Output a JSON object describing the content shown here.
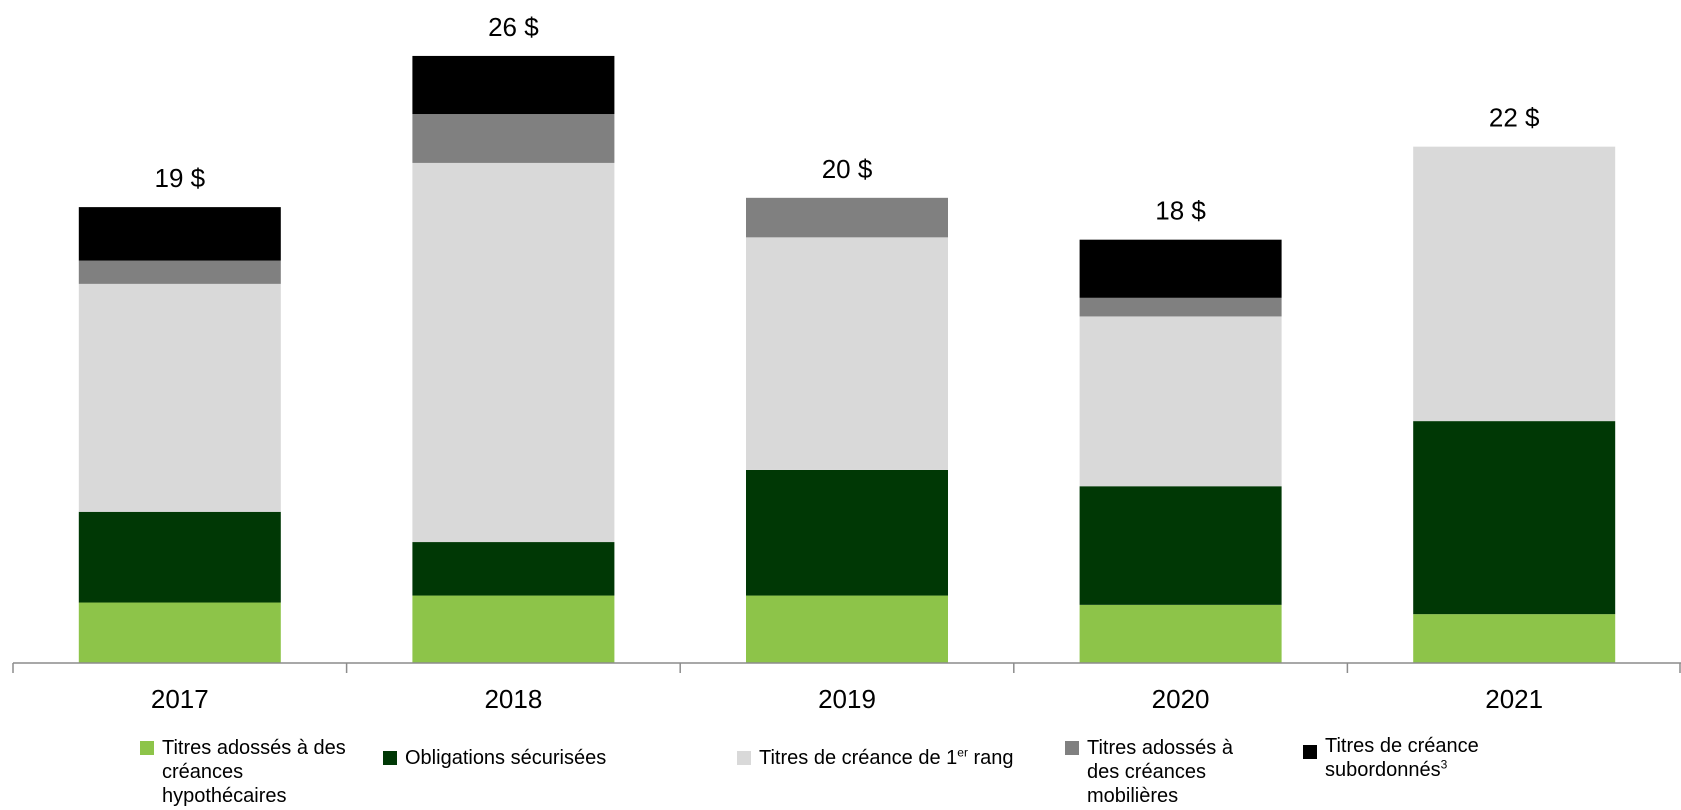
{
  "chart_data": {
    "type": "bar",
    "stacked": true,
    "categories": [
      "2017",
      "2018",
      "2019",
      "2020",
      "2021"
    ],
    "totals_labels": [
      "19 $",
      "26 $",
      "20 $",
      "18 $",
      "22 $"
    ],
    "ylim": [
      0,
      27
    ],
    "grid": false,
    "legend_position": "bottom",
    "series": [
      {
        "name": "Titres adossés à des créances hypothécaires",
        "color": "#8dc449",
        "values": [
          2.6,
          2.9,
          2.9,
          2.5,
          2.1
        ]
      },
      {
        "name": "Obligations sécurisées",
        "color": "#003805",
        "values": [
          3.9,
          2.3,
          5.4,
          5.1,
          8.3
        ]
      },
      {
        "name": "Titres de créance de 1er rang",
        "color": "#d9d9d9",
        "values": [
          9.8,
          16.3,
          10.0,
          7.3,
          11.8
        ]
      },
      {
        "name": "Titres adossés à des créances mobilières",
        "color": "#808080",
        "values": [
          1.0,
          2.1,
          1.7,
          0.8,
          0.0
        ]
      },
      {
        "name": "Titres de créance subordonnés3",
        "color": "#000000",
        "values": [
          2.3,
          2.5,
          0.0,
          2.5,
          0.0
        ]
      }
    ]
  },
  "legend": {
    "items": [
      {
        "label": "Titres adossés à des créances hypothécaires",
        "sup": ""
      },
      {
        "label": "Obligations sécurisées",
        "sup": ""
      },
      {
        "label_pre": "Titres de créance de 1",
        "sup": "er",
        "label_post": " rang"
      },
      {
        "label": "Titres adossés à des créances mobilières",
        "sup": ""
      },
      {
        "label": "Titres de créance subordonnés",
        "sup": "3"
      }
    ]
  }
}
